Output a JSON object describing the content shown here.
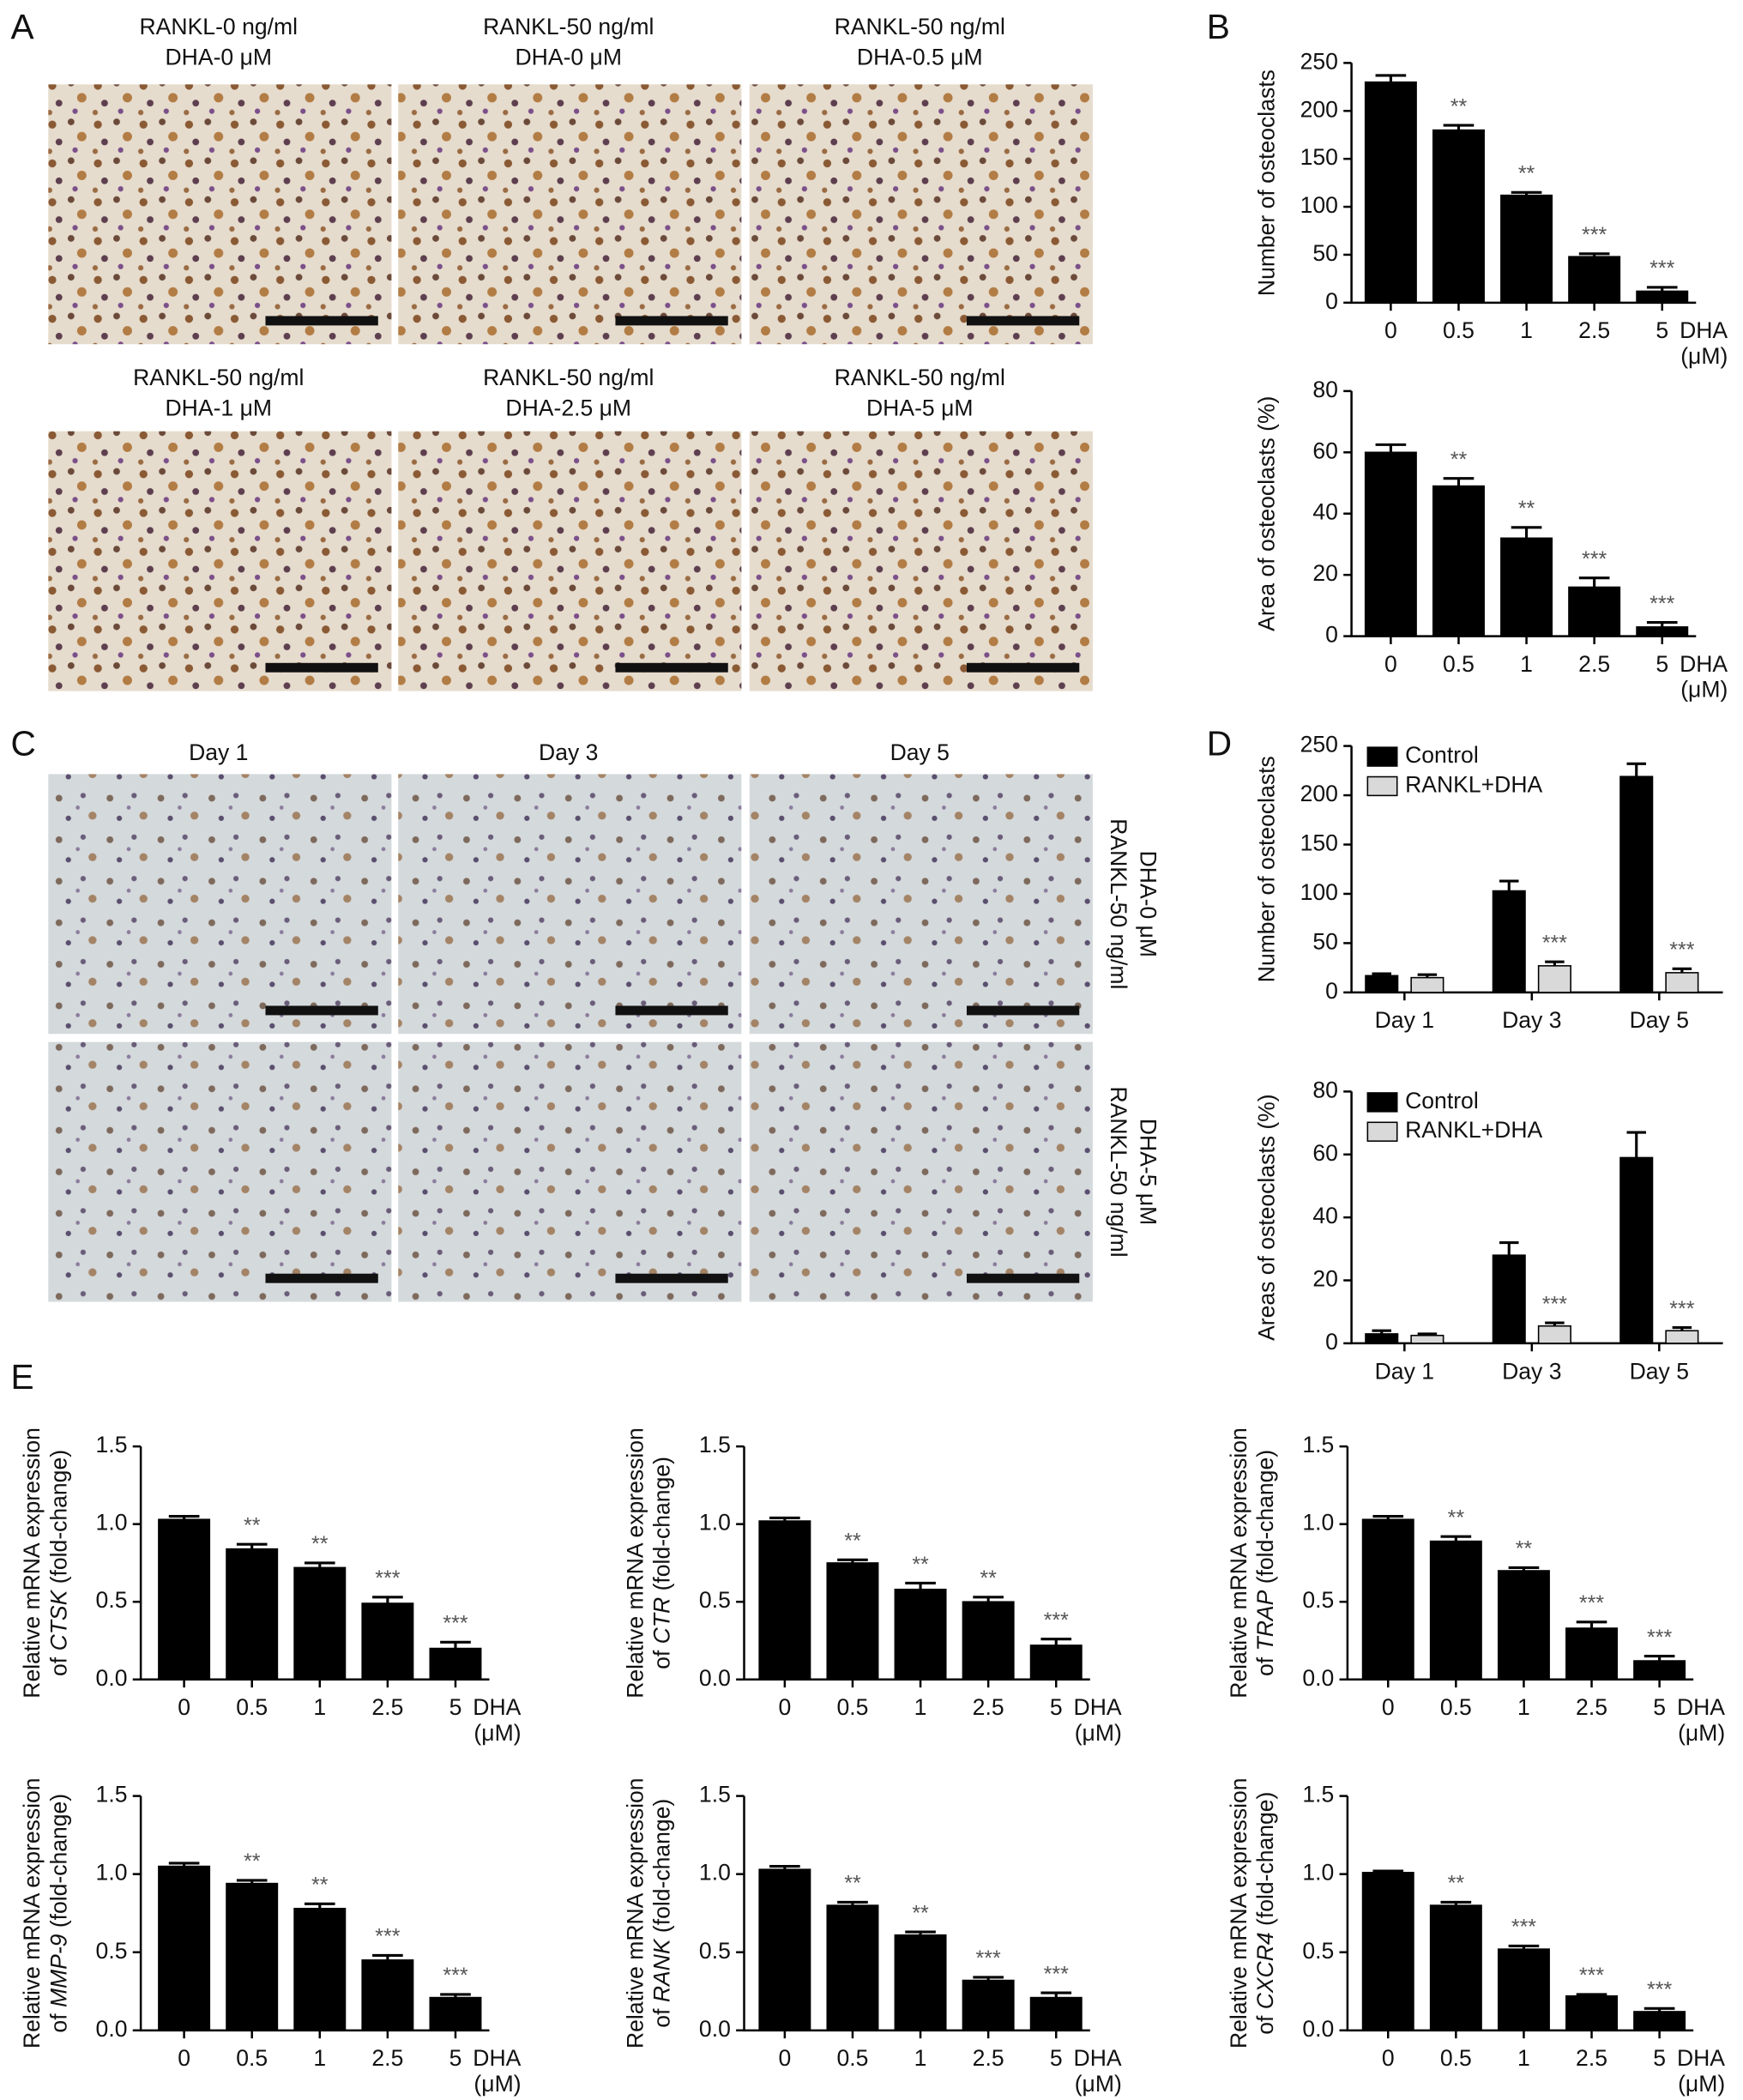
{
  "panels": [
    "A",
    "B",
    "C",
    "D",
    "E"
  ],
  "micrographs_A": [
    [
      "RANKL-0 ng/ml",
      "DHA-0 μM"
    ],
    [
      "RANKL-50 ng/ml",
      "DHA-0 μM"
    ],
    [
      "RANKL-50 ng/ml",
      "DHA-0.5 μM"
    ],
    [
      "RANKL-50 ng/ml",
      "DHA-1 μM"
    ],
    [
      "RANKL-50 ng/ml",
      "DHA-2.5 μM"
    ],
    [
      "RANKL-50 ng/ml",
      "DHA-5 μM"
    ]
  ],
  "micrographs_C": {
    "columns": [
      "Day 1",
      "Day 3",
      "Day 5"
    ],
    "rows": [
      [
        "RANKL-50 ng/ml",
        "DHA-0 μM"
      ],
      [
        "RANKL-50 ng/ml",
        "DHA-5 μM"
      ]
    ]
  },
  "chart_data": [
    {
      "type": "bar",
      "y_label": "Number of osteoclasts",
      "categories": [
        "0",
        "0.5",
        "1",
        "2.5",
        "5"
      ],
      "x_label": [
        "DHA",
        "(μM)"
      ],
      "values": [
        230,
        180,
        112,
        48,
        12
      ],
      "errors": [
        7,
        5,
        3,
        3,
        4
      ],
      "annotations": [
        null,
        "**",
        "**",
        "***",
        "***"
      ],
      "color": "#000000",
      "ylim": [
        0,
        250
      ],
      "yticks": [
        0,
        50,
        100,
        150,
        200,
        250
      ]
    },
    {
      "type": "bar",
      "y_label": "Area of osteoclasts (%)",
      "categories": [
        "0",
        "0.5",
        "1",
        "2.5",
        "5"
      ],
      "x_label": [
        "DHA",
        "(μM)"
      ],
      "values": [
        60,
        49,
        32,
        16,
        3
      ],
      "errors": [
        2.5,
        2.5,
        3.5,
        3,
        1.5
      ],
      "annotations": [
        null,
        "**",
        "**",
        "***",
        "***"
      ],
      "color": "#000000",
      "ylim": [
        0,
        80
      ],
      "yticks": [
        0,
        20,
        40,
        60,
        80
      ]
    },
    {
      "type": "grouped_bar",
      "y_label": "Number of osteoclasts",
      "categories": [
        "Day 1",
        "Day 3",
        "Day 5"
      ],
      "legend": "upper left",
      "series": [
        {
          "name": "Control",
          "color": "#000000",
          "values": [
            17,
            103,
            219
          ],
          "errors": [
            2,
            10,
            13
          ],
          "annotations": [
            null,
            null,
            null
          ]
        },
        {
          "name": "RANKL+DHA",
          "color": "#d9d9d9",
          "values": [
            15,
            27,
            20
          ],
          "errors": [
            3,
            4,
            4
          ],
          "annotations": [
            null,
            "***",
            "***"
          ]
        }
      ],
      "ylim": [
        0,
        250
      ],
      "yticks": [
        0,
        50,
        100,
        150,
        200,
        250
      ]
    },
    {
      "type": "grouped_bar",
      "y_label": "Areas of osteoclasts (%)",
      "categories": [
        "Day 1",
        "Day 3",
        "Day 5"
      ],
      "legend": "upper left",
      "series": [
        {
          "name": "Control",
          "color": "#000000",
          "values": [
            3,
            28,
            59
          ],
          "errors": [
            1,
            4,
            8
          ],
          "annotations": [
            null,
            null,
            null
          ]
        },
        {
          "name": "RANKL+DHA",
          "color": "#d9d9d9",
          "values": [
            2.5,
            5.5,
            4
          ],
          "errors": [
            0.5,
            1,
            1
          ],
          "annotations": [
            null,
            "***",
            "***"
          ]
        }
      ],
      "ylim": [
        0,
        80
      ],
      "yticks": [
        0,
        20,
        40,
        60,
        80
      ]
    },
    {
      "type": "bar",
      "y_label": [
        "Relative mRNA expression",
        "of",
        "CTSK",
        "(fold-change)"
      ],
      "categories": [
        "0",
        "0.5",
        "1",
        "2.5",
        "5"
      ],
      "x_label": [
        "DHA",
        "(μM)"
      ],
      "values": [
        1.03,
        0.84,
        0.72,
        0.49,
        0.2
      ],
      "errors": [
        0.02,
        0.03,
        0.03,
        0.04,
        0.04
      ],
      "annotations": [
        null,
        "**",
        "**",
        "***",
        "***"
      ],
      "color": "#000000",
      "ylim": [
        0,
        1.5
      ],
      "yticks": [
        {
          "value": 0,
          "label": "0.0"
        },
        0.5,
        {
          "value": 1,
          "label": "1.0"
        },
        1.5
      ]
    },
    {
      "type": "bar",
      "y_label": [
        "Relative mRNA expression",
        "of",
        "CTR",
        "(fold-change)"
      ],
      "categories": [
        "0",
        "0.5",
        "1",
        "2.5",
        "5"
      ],
      "x_label": [
        "DHA",
        "(μM)"
      ],
      "values": [
        1.02,
        0.75,
        0.58,
        0.5,
        0.22
      ],
      "errors": [
        0.02,
        0.02,
        0.04,
        0.03,
        0.04
      ],
      "annotations": [
        null,
        "**",
        "**",
        "**",
        "***"
      ],
      "color": "#000000",
      "ylim": [
        0,
        1.5
      ],
      "yticks": [
        {
          "value": 0,
          "label": "0.0"
        },
        0.5,
        {
          "value": 1,
          "label": "1.0"
        },
        1.5
      ]
    },
    {
      "type": "bar",
      "y_label": [
        "Relative mRNA expression",
        "of",
        "TRAP",
        "(fold-change)"
      ],
      "categories": [
        "0",
        "0.5",
        "1",
        "2.5",
        "5"
      ],
      "x_label": [
        "DHA",
        "(μM)"
      ],
      "values": [
        1.03,
        0.89,
        0.7,
        0.33,
        0.12
      ],
      "errors": [
        0.02,
        0.03,
        0.02,
        0.04,
        0.03
      ],
      "annotations": [
        null,
        "**",
        "**",
        "***",
        "***"
      ],
      "color": "#000000",
      "ylim": [
        0,
        1.5
      ],
      "yticks": [
        {
          "value": 0,
          "label": "0.0"
        },
        0.5,
        {
          "value": 1,
          "label": "1.0"
        },
        1.5
      ]
    },
    {
      "type": "bar",
      "y_label": [
        "Relative mRNA expression",
        "of",
        "MMP-9",
        "(fold-change)"
      ],
      "categories": [
        "0",
        "0.5",
        "1",
        "2.5",
        "5"
      ],
      "x_label": [
        "DHA",
        "(μM)"
      ],
      "values": [
        1.05,
        0.94,
        0.78,
        0.45,
        0.21
      ],
      "errors": [
        0.02,
        0.02,
        0.03,
        0.03,
        0.02
      ],
      "annotations": [
        null,
        "**",
        "**",
        "***",
        "***"
      ],
      "color": "#000000",
      "ylim": [
        0,
        1.5
      ],
      "yticks": [
        {
          "value": 0,
          "label": "0.0"
        },
        0.5,
        {
          "value": 1,
          "label": "1.0"
        },
        1.5
      ]
    },
    {
      "type": "bar",
      "y_label": [
        "Relative mRNA expression",
        "of",
        "RANK",
        "(fold-change)"
      ],
      "categories": [
        "0",
        "0.5",
        "1",
        "2.5",
        "5"
      ],
      "x_label": [
        "DHA",
        "(μM)"
      ],
      "values": [
        1.03,
        0.8,
        0.61,
        0.32,
        0.21
      ],
      "errors": [
        0.02,
        0.02,
        0.02,
        0.02,
        0.03
      ],
      "annotations": [
        null,
        "**",
        "**",
        "***",
        "***"
      ],
      "color": "#000000",
      "ylim": [
        0,
        1.5
      ],
      "yticks": [
        {
          "value": 0,
          "label": "0.0"
        },
        0.5,
        {
          "value": 1,
          "label": "1.0"
        },
        1.5
      ]
    },
    {
      "type": "bar",
      "y_label": [
        "Relative mRNA expression",
        "of",
        "CXCR4",
        "(fold-change)"
      ],
      "categories": [
        "0",
        "0.5",
        "1",
        "2.5",
        "5"
      ],
      "x_label": [
        "DHA",
        "(μM)"
      ],
      "values": [
        1.01,
        0.8,
        0.52,
        0.22,
        0.12
      ],
      "errors": [
        0.01,
        0.02,
        0.02,
        0.01,
        0.02
      ],
      "annotations": [
        null,
        "**",
        "***",
        "***",
        "***"
      ],
      "color": "#000000",
      "ylim": [
        0,
        1.5
      ],
      "yticks": [
        {
          "value": 0,
          "label": "0.0"
        },
        0.5,
        {
          "value": 1,
          "label": "1.0"
        },
        1.5
      ]
    }
  ]
}
